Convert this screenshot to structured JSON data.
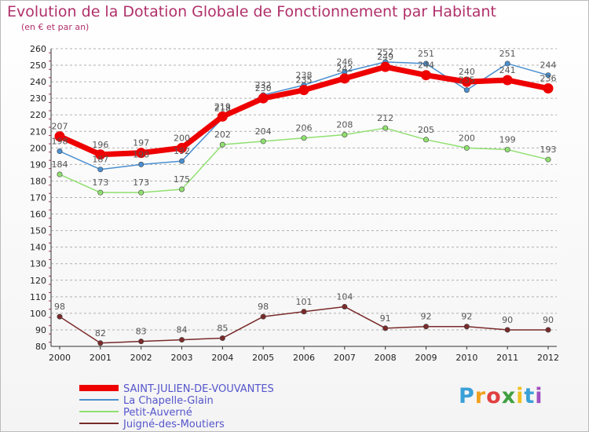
{
  "header": {
    "title": "Evolution de la Dotation Globale de Fonctionnement par Habitant",
    "subtitle": "(en € et par an)"
  },
  "brand": {
    "letters": [
      "P",
      "r",
      "o",
      "x",
      "i",
      "t",
      "i"
    ],
    "colors": [
      "#3aa0d8",
      "#f0a020",
      "#e04040",
      "#40a040",
      "#f0c020",
      "#3aa0d8",
      "#a050c0"
    ]
  },
  "colors": {
    "title": "#b0306a",
    "grid": "#b0b0b0",
    "axis": "#333333"
  },
  "chart_data": {
    "type": "line",
    "x": [
      "2000",
      "2001",
      "2002",
      "2003",
      "2004",
      "2005",
      "2006",
      "2007",
      "2008",
      "2009",
      "2010",
      "2011",
      "2012"
    ],
    "yticks": [
      80,
      90,
      100,
      110,
      120,
      130,
      140,
      150,
      160,
      170,
      180,
      190,
      200,
      210,
      220,
      230,
      240,
      250,
      260
    ],
    "ylim": [
      80,
      260
    ],
    "grid": "horizontal-dashed",
    "legend_position": "bottom-left",
    "series": [
      {
        "name": "SAINT-JULIEN-DE-VOUVANTES",
        "color": "#ee0000",
        "values": [
          207,
          196,
          197,
          200,
          219,
          230,
          235,
          242,
          249,
          244,
          240,
          241,
          236
        ],
        "labels": [
          "207",
          "196",
          "197",
          "200",
          "219",
          "230",
          "235",
          "242",
          "249",
          "244",
          "240",
          "241",
          "236"
        ]
      },
      {
        "name": "La Chapelle-Glain",
        "color": "#4a8fd0",
        "values": [
          198,
          187,
          190,
          192,
          218,
          232,
          238,
          246,
          252,
          251,
          235,
          251,
          244
        ],
        "labels": [
          "198",
          "187",
          "190",
          "192",
          "218",
          "232",
          "238",
          "246",
          "252",
          "251",
          "235",
          "251",
          "244"
        ]
      },
      {
        "name": "Petit-Auverné",
        "color": "#90e070",
        "values": [
          184,
          173,
          173,
          175,
          202,
          204,
          206,
          208,
          212,
          205,
          200,
          199,
          193
        ],
        "labels": [
          "184",
          "173",
          "173",
          "175",
          "202",
          "204",
          "206",
          "208",
          "212",
          "205",
          "200",
          "199",
          "193"
        ]
      },
      {
        "name": "Juigné-des-Moutiers",
        "color": "#7a2a2a",
        "values": [
          98,
          82,
          83,
          84,
          85,
          98,
          101,
          104,
          91,
          92,
          92,
          90,
          90
        ],
        "labels": [
          "98",
          "82",
          "83",
          "84",
          "85",
          "98",
          "101",
          "104",
          "91",
          "92",
          "92",
          "90",
          "90"
        ]
      }
    ]
  }
}
